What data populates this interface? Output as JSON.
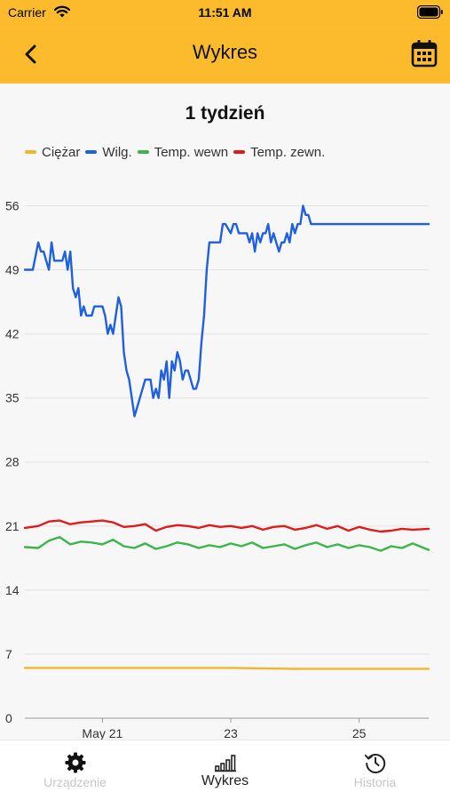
{
  "status_bar": {
    "carrier": "Carrier",
    "time": "11:51 AM"
  },
  "nav": {
    "title": "Wykres"
  },
  "chart": {
    "title": "1 tydzień"
  },
  "tabs": [
    {
      "label": "Urządzenie",
      "icon": "gear-icon",
      "active": false
    },
    {
      "label": "Wykres",
      "icon": "bar-chart-icon",
      "active": true
    },
    {
      "label": "Historia",
      "icon": "history-icon",
      "active": false
    }
  ],
  "colors": {
    "accent": "#fbbb2c",
    "weight": "#f5b52a",
    "humidity": "#1f5fe0",
    "temp_in": "#3cb54a",
    "temp_out": "#e01b1b"
  },
  "chart_data": {
    "type": "line",
    "title": "1 tydzień",
    "xlabel": "",
    "ylabel": "",
    "x_start": "May 19 19:00",
    "x_end": "May 26 02:00",
    "ylim": [
      0,
      59
    ],
    "yticks": [
      0,
      7,
      14,
      21,
      28,
      35,
      42,
      49,
      56
    ],
    "xticks": [
      {
        "label": "May 21",
        "x": "May 21 00:00"
      },
      {
        "label": "23",
        "x": "May 23 00:00"
      },
      {
        "label": "25",
        "x": "May 25 00:00"
      }
    ],
    "grid": true,
    "legend_position": "top",
    "series": [
      {
        "name": "Ciężar",
        "color": "#f5b52a",
        "points": [
          [
            "May 19 19:00",
            5.5
          ],
          [
            "May 21 00:00",
            5.5
          ],
          [
            "May 23 00:00",
            5.5
          ],
          [
            "May 24 00:00",
            5.4
          ],
          [
            "May 26 02:00",
            5.4
          ]
        ]
      },
      {
        "name": "Wilg.",
        "color": "#1f5fe0",
        "points": [
          [
            "May 19 19:00",
            49
          ],
          [
            "May 19 22:00",
            49
          ],
          [
            "May 20 00:00",
            52
          ],
          [
            "May 20 01:00",
            51
          ],
          [
            "May 20 02:00",
            51
          ],
          [
            "May 20 03:00",
            50
          ],
          [
            "May 20 04:00",
            49
          ],
          [
            "May 20 05:00",
            52
          ],
          [
            "May 20 06:00",
            50
          ],
          [
            "May 20 09:00",
            50
          ],
          [
            "May 20 10:00",
            51
          ],
          [
            "May 20 11:00",
            49
          ],
          [
            "May 20 12:00",
            51
          ],
          [
            "May 20 13:00",
            47
          ],
          [
            "May 20 14:00",
            46
          ],
          [
            "May 20 15:00",
            47
          ],
          [
            "May 20 16:00",
            44
          ],
          [
            "May 20 17:00",
            45
          ],
          [
            "May 20 18:00",
            44
          ],
          [
            "May 20 20:00",
            44
          ],
          [
            "May 20 21:00",
            45
          ],
          [
            "May 21 00:00",
            45
          ],
          [
            "May 21 01:00",
            44
          ],
          [
            "May 21 02:00",
            42
          ],
          [
            "May 21 03:00",
            43
          ],
          [
            "May 21 04:00",
            42
          ],
          [
            "May 21 06:00",
            46
          ],
          [
            "May 21 07:00",
            45
          ],
          [
            "May 21 08:00",
            40
          ],
          [
            "May 21 09:00",
            38
          ],
          [
            "May 21 10:00",
            37
          ],
          [
            "May 21 11:00",
            35
          ],
          [
            "May 21 12:00",
            33
          ],
          [
            "May 21 13:00",
            34
          ],
          [
            "May 21 14:00",
            35
          ],
          [
            "May 21 15:00",
            36
          ],
          [
            "May 21 16:00",
            37
          ],
          [
            "May 21 18:00",
            37
          ],
          [
            "May 21 19:00",
            35
          ],
          [
            "May 21 20:00",
            36
          ],
          [
            "May 21 21:00",
            35
          ],
          [
            "May 21 22:00",
            38
          ],
          [
            "May 21 23:00",
            37
          ],
          [
            "May 22 00:00",
            39
          ],
          [
            "May 22 01:00",
            35
          ],
          [
            "May 22 02:00",
            39
          ],
          [
            "May 22 03:00",
            38
          ],
          [
            "May 22 04:00",
            40
          ],
          [
            "May 22 05:00",
            39
          ],
          [
            "May 22 06:00",
            37
          ],
          [
            "May 22 07:00",
            38
          ],
          [
            "May 22 08:00",
            38
          ],
          [
            "May 22 09:00",
            37
          ],
          [
            "May 22 10:00",
            36
          ],
          [
            "May 22 11:00",
            36
          ],
          [
            "May 22 12:00",
            37
          ],
          [
            "May 22 13:00",
            41
          ],
          [
            "May 22 14:00",
            44
          ],
          [
            "May 22 15:00",
            49
          ],
          [
            "May 22 16:00",
            52
          ],
          [
            "May 22 20:00",
            52
          ],
          [
            "May 22 21:00",
            54
          ],
          [
            "May 22 22:00",
            54
          ],
          [
            "May 23 00:00",
            53
          ],
          [
            "May 23 01:00",
            54
          ],
          [
            "May 23 02:00",
            54
          ],
          [
            "May 23 03:00",
            53
          ],
          [
            "May 23 06:00",
            53
          ],
          [
            "May 23 07:00",
            52
          ],
          [
            "May 23 08:00",
            53
          ],
          [
            "May 23 09:00",
            51
          ],
          [
            "May 23 10:00",
            53
          ],
          [
            "May 23 11:00",
            52
          ],
          [
            "May 23 12:00",
            53
          ],
          [
            "May 23 13:00",
            53
          ],
          [
            "May 23 14:00",
            54
          ],
          [
            "May 23 15:00",
            52
          ],
          [
            "May 23 16:00",
            53
          ],
          [
            "May 23 17:00",
            52
          ],
          [
            "May 23 18:00",
            51
          ],
          [
            "May 23 19:00",
            52
          ],
          [
            "May 23 20:00",
            52
          ],
          [
            "May 23 21:00",
            53
          ],
          [
            "May 23 22:00",
            52
          ],
          [
            "May 23 23:00",
            54
          ],
          [
            "May 24 00:00",
            53
          ],
          [
            "May 24 01:00",
            54
          ],
          [
            "May 24 02:00",
            54
          ],
          [
            "May 24 03:00",
            56
          ],
          [
            "May 24 04:00",
            55
          ],
          [
            "May 24 05:00",
            55
          ],
          [
            "May 24 06:00",
            54
          ],
          [
            "May 26 02:00",
            54
          ]
        ]
      },
      {
        "name": "Temp. wewn",
        "color": "#3cb54a",
        "points": [
          [
            "May 19 19:00",
            18.7
          ],
          [
            "May 20 00:00",
            18.6
          ],
          [
            "May 20 04:00",
            19.4
          ],
          [
            "May 20 08:00",
            19.8
          ],
          [
            "May 20 12:00",
            19.0
          ],
          [
            "May 20 16:00",
            19.3
          ],
          [
            "May 20 20:00",
            19.2
          ],
          [
            "May 21 00:00",
            19.0
          ],
          [
            "May 21 04:00",
            19.5
          ],
          [
            "May 21 08:00",
            18.8
          ],
          [
            "May 21 12:00",
            18.6
          ],
          [
            "May 21 16:00",
            19.1
          ],
          [
            "May 21 20:00",
            18.5
          ],
          [
            "May 22 00:00",
            18.8
          ],
          [
            "May 22 04:00",
            19.2
          ],
          [
            "May 22 08:00",
            19.0
          ],
          [
            "May 22 12:00",
            18.6
          ],
          [
            "May 22 16:00",
            18.9
          ],
          [
            "May 22 20:00",
            18.7
          ],
          [
            "May 23 00:00",
            19.1
          ],
          [
            "May 23 04:00",
            18.8
          ],
          [
            "May 23 08:00",
            19.2
          ],
          [
            "May 23 12:00",
            18.6
          ],
          [
            "May 23 16:00",
            18.8
          ],
          [
            "May 23 20:00",
            19.0
          ],
          [
            "May 24 00:00",
            18.5
          ],
          [
            "May 24 04:00",
            18.9
          ],
          [
            "May 24 08:00",
            19.2
          ],
          [
            "May 24 12:00",
            18.7
          ],
          [
            "May 24 16:00",
            19.0
          ],
          [
            "May 24 20:00",
            18.6
          ],
          [
            "May 25 00:00",
            18.9
          ],
          [
            "May 25 04:00",
            18.7
          ],
          [
            "May 25 08:00",
            18.3
          ],
          [
            "May 25 12:00",
            18.8
          ],
          [
            "May 25 16:00",
            18.6
          ],
          [
            "May 25 20:00",
            19.1
          ],
          [
            "May 26 02:00",
            18.4
          ]
        ]
      },
      {
        "name": "Temp. zewn.",
        "color": "#e01b1b",
        "points": [
          [
            "May 19 19:00",
            20.8
          ],
          [
            "May 20 00:00",
            21.0
          ],
          [
            "May 20 04:00",
            21.5
          ],
          [
            "May 20 08:00",
            21.6
          ],
          [
            "May 20 12:00",
            21.2
          ],
          [
            "May 20 16:00",
            21.4
          ],
          [
            "May 20 20:00",
            21.5
          ],
          [
            "May 21 00:00",
            21.6
          ],
          [
            "May 21 04:00",
            21.4
          ],
          [
            "May 21 08:00",
            20.9
          ],
          [
            "May 21 12:00",
            21.0
          ],
          [
            "May 21 16:00",
            21.2
          ],
          [
            "May 21 20:00",
            20.5
          ],
          [
            "May 22 00:00",
            20.9
          ],
          [
            "May 22 04:00",
            21.1
          ],
          [
            "May 22 08:00",
            21.0
          ],
          [
            "May 22 12:00",
            20.8
          ],
          [
            "May 22 16:00",
            21.1
          ],
          [
            "May 22 20:00",
            20.9
          ],
          [
            "May 23 00:00",
            21.0
          ],
          [
            "May 23 04:00",
            20.8
          ],
          [
            "May 23 08:00",
            21.0
          ],
          [
            "May 23 12:00",
            20.6
          ],
          [
            "May 23 16:00",
            20.9
          ],
          [
            "May 23 20:00",
            21.0
          ],
          [
            "May 24 00:00",
            20.6
          ],
          [
            "May 24 04:00",
            20.8
          ],
          [
            "May 24 08:00",
            21.1
          ],
          [
            "May 24 12:00",
            20.7
          ],
          [
            "May 24 16:00",
            21.0
          ],
          [
            "May 24 20:00",
            20.5
          ],
          [
            "May 25 00:00",
            20.9
          ],
          [
            "May 25 04:00",
            20.6
          ],
          [
            "May 25 08:00",
            20.4
          ],
          [
            "May 25 12:00",
            20.5
          ],
          [
            "May 25 16:00",
            20.7
          ],
          [
            "May 25 20:00",
            20.6
          ],
          [
            "May 26 02:00",
            20.7
          ]
        ]
      }
    ]
  }
}
